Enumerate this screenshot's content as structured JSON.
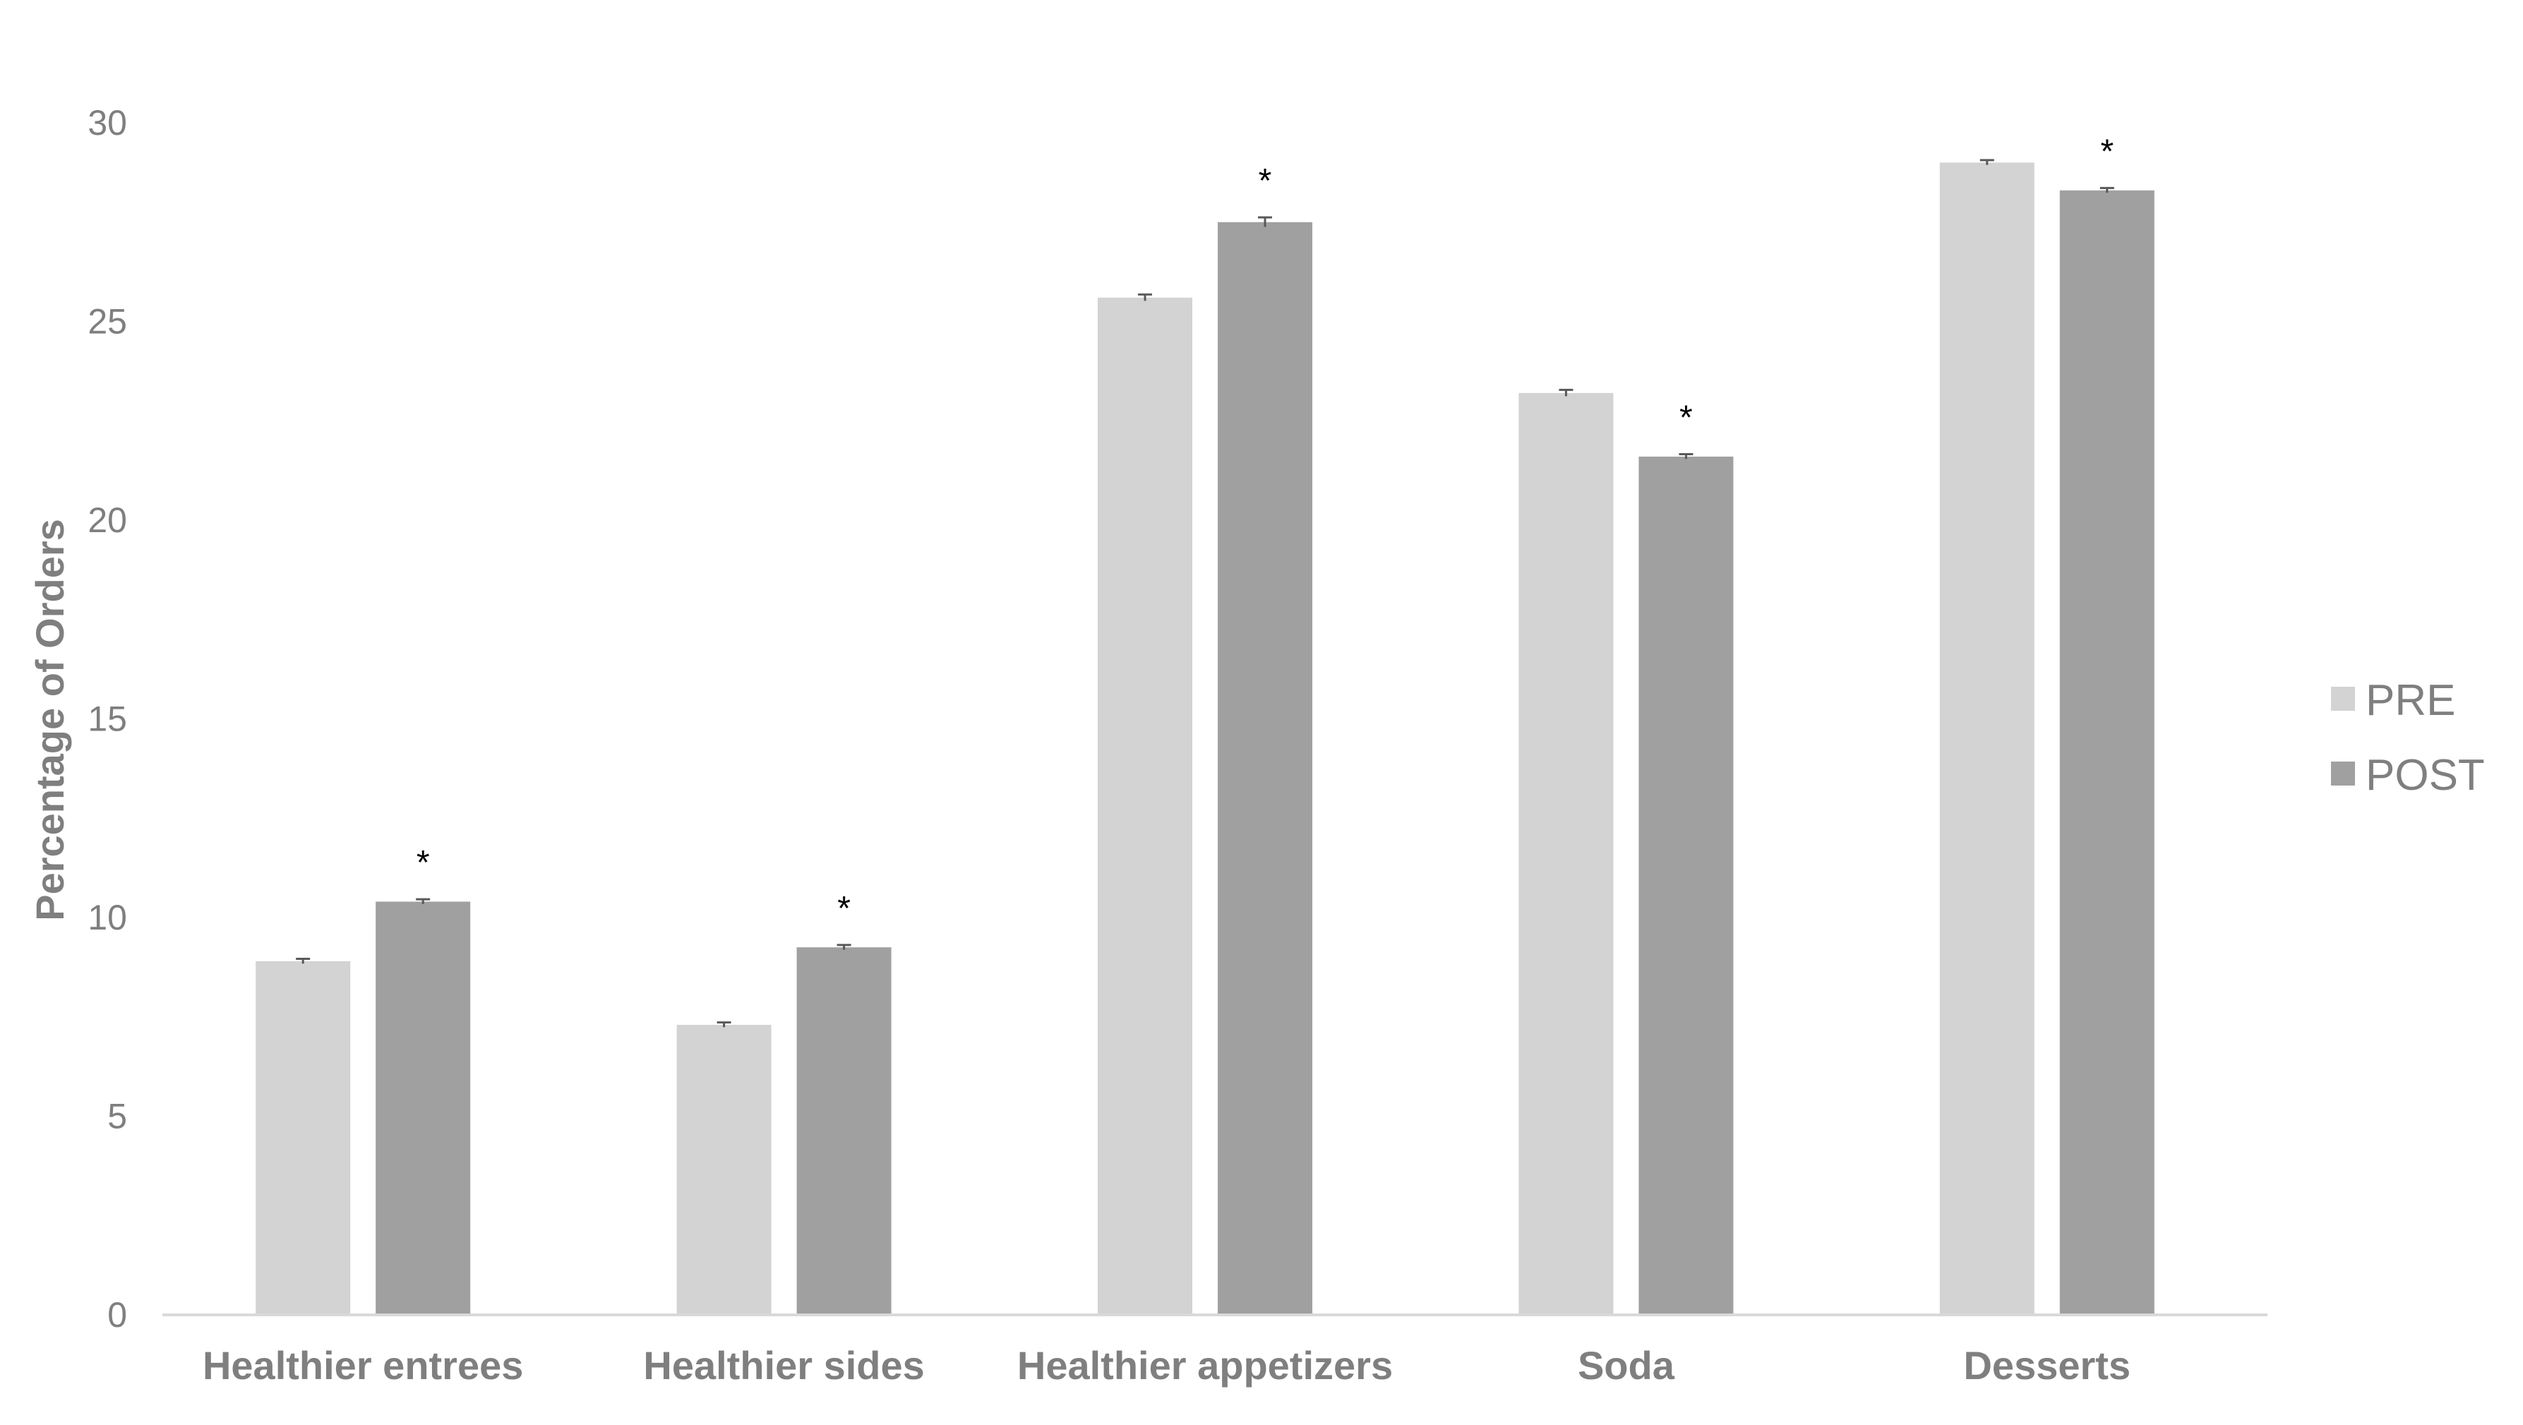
{
  "chart_data": {
    "type": "bar",
    "categories": [
      "Healthier entrees",
      "Healthier sides",
      "Healthier appetizers",
      "Soda",
      "Desserts"
    ],
    "series": [
      {
        "name": "PRE",
        "values": [
          8.9,
          7.3,
          25.6,
          23.2,
          29.0
        ],
        "errors": [
          0.06,
          0.06,
          0.08,
          0.08,
          0.06
        ],
        "color": "#d3d3d3"
      },
      {
        "name": "POST",
        "values": [
          10.4,
          9.25,
          27.5,
          21.6,
          28.3
        ],
        "errors": [
          0.06,
          0.06,
          0.12,
          0.06,
          0.06
        ],
        "color": "#a0a0a0"
      }
    ],
    "significance": [
      "*",
      "*",
      "*",
      "*",
      "*"
    ],
    "title": "",
    "xlabel": "",
    "ylabel": "Percentage of Orders",
    "ylim": [
      0,
      30
    ],
    "yticks": [
      "0",
      "5",
      "10",
      "15",
      "20",
      "25",
      "30"
    ],
    "grid": false,
    "legend_position": "right"
  }
}
